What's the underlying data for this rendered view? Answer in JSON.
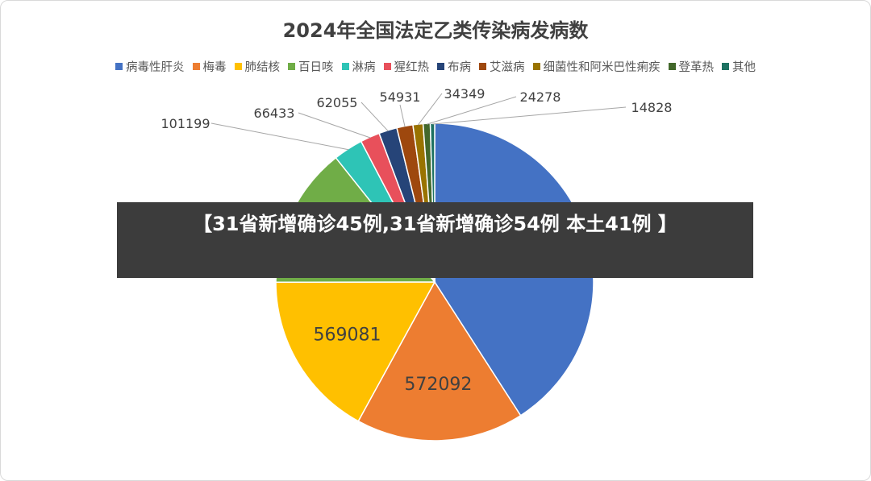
{
  "chart_data": {
    "type": "pie",
    "title": "2024年全国法定乙类传染病发病数",
    "legend_position": "top",
    "slices": [
      {
        "name": "病毒性肝炎",
        "value": 1370000,
        "label": "",
        "color": "#4472C4"
      },
      {
        "name": "梅毒",
        "value": 572092,
        "label": "572092",
        "color": "#ED7D31"
      },
      {
        "name": "肺结核",
        "value": 569081,
        "label": "569081",
        "color": "#FFC000"
      },
      {
        "name": "百日咳",
        "value": 480000,
        "label": "",
        "color": "#70AD47"
      },
      {
        "name": "淋病",
        "value": 101199,
        "label": "101199",
        "color": "#2EC4B6"
      },
      {
        "name": "猩红热",
        "value": 66433,
        "label": "66433",
        "color": "#E8505B"
      },
      {
        "name": "布病",
        "value": 62055,
        "label": "62055",
        "color": "#264478"
      },
      {
        "name": "艾滋病",
        "value": 54931,
        "label": "54931",
        "color": "#9E480E"
      },
      {
        "name": "细菌性和阿米巴性痢疾",
        "value": 34349,
        "label": "34349",
        "color": "#997300"
      },
      {
        "name": "登革热",
        "value": 24278,
        "label": "24278",
        "color": "#43682B"
      },
      {
        "name": "其他",
        "value": 14828,
        "label": "14828",
        "color": "#1E7262"
      }
    ]
  },
  "banner": {
    "text": "【31省新增确诊45例,31省新增确诊54例 本土41例 】"
  }
}
